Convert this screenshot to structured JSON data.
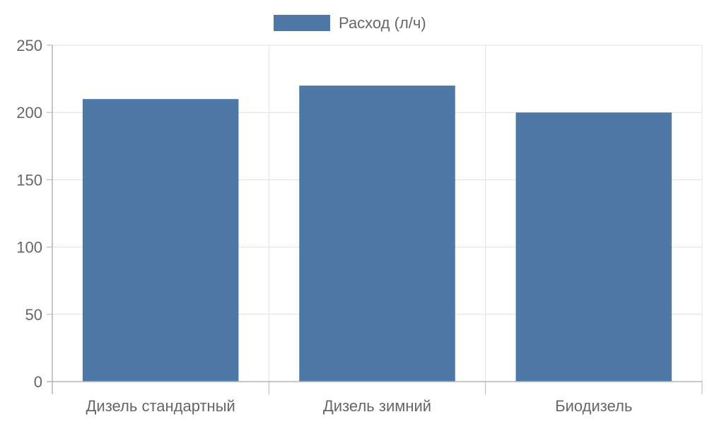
{
  "chart_data": {
    "type": "bar",
    "categories": [
      "Дизель стандартный",
      "Дизель зимний",
      "Биодизель"
    ],
    "series": [
      {
        "name": "Расход (л/ч)",
        "values": [
          210,
          220,
          200
        ],
        "color": "#4e79a7"
      }
    ],
    "ylim": [
      0,
      250
    ],
    "yticks": [
      0,
      50,
      100,
      150,
      200,
      250
    ],
    "grid": true,
    "legend": "top-center",
    "colors": {
      "grid": "#e0e0e0",
      "axis": "#b3b3b3",
      "text": "#666666"
    }
  }
}
